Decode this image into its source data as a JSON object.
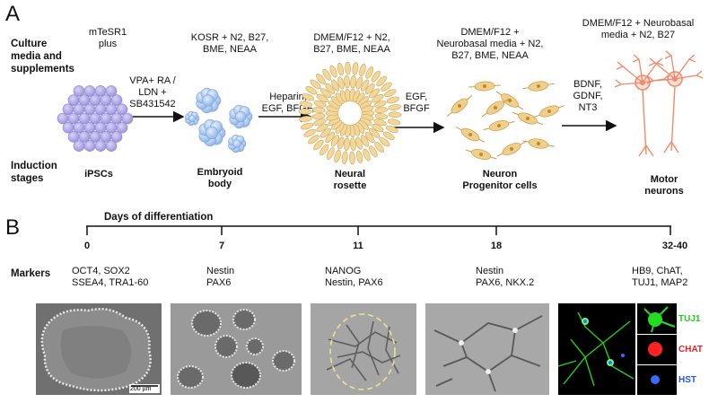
{
  "panel_a": {
    "letter": "A",
    "side_label_culture": [
      "Culture",
      "media and",
      "supplements"
    ],
    "side_label_induction": [
      "Induction",
      "stages"
    ],
    "media": [
      [
        "mTeSR1",
        "plus"
      ],
      [
        "KOSR + N2, B27,",
        "BME, NEAA"
      ],
      [
        "DMEM/F12 + N2,",
        "B27, BME, NEAA"
      ],
      [
        "DMEM/F12 +",
        "Neurobasal media + N2,",
        "B27, BME, NEAA"
      ],
      [
        "DMEM/F12 + Neurobasal",
        "media + N2, B27"
      ]
    ],
    "arrows": [
      [
        "VPA+ RA /",
        "LDN +",
        "SB431542"
      ],
      [
        "Heparin,",
        "EGF, BFGF,"
      ],
      [
        "EGF,",
        "BFGF"
      ],
      [
        "BDNF,",
        "GDNF,",
        "NT3"
      ]
    ],
    "stages": [
      [
        "iPSCs"
      ],
      [
        "Embryoid",
        "body"
      ],
      [
        "Neural",
        "rosette"
      ],
      [
        "Neuron",
        "Progenitor cells"
      ],
      [
        "Motor",
        "neurons"
      ]
    ]
  },
  "panel_b": {
    "letter": "B",
    "timeline_title": "Days of differentiation",
    "markers_label": "Markers",
    "days": [
      "0",
      "7",
      "11",
      "18",
      "32-40"
    ],
    "markers": [
      [
        "OCT4, SOX2",
        "SSEA4, TRA1-60"
      ],
      [
        "Nestin",
        "PAX6"
      ],
      [
        "NANOG",
        "Nestin, PAX6"
      ],
      [
        "Nestin",
        "PAX6, NKX.2"
      ],
      [
        "HB9, ChAT,",
        "TUJ1, MAP2"
      ]
    ],
    "scale_bar": "200 µm",
    "stain_labels": [
      "TUJ1",
      "CHAT",
      "HST"
    ],
    "stain_colors": [
      "#22dd22",
      "#ff2222",
      "#3a6bff"
    ]
  },
  "colors": {
    "ipsc": "#b5b0e6",
    "eb": "#a9c6ef",
    "rosette": "#f3d79a",
    "npc": "#f0cf8a",
    "neuron": "#f08a6a"
  }
}
